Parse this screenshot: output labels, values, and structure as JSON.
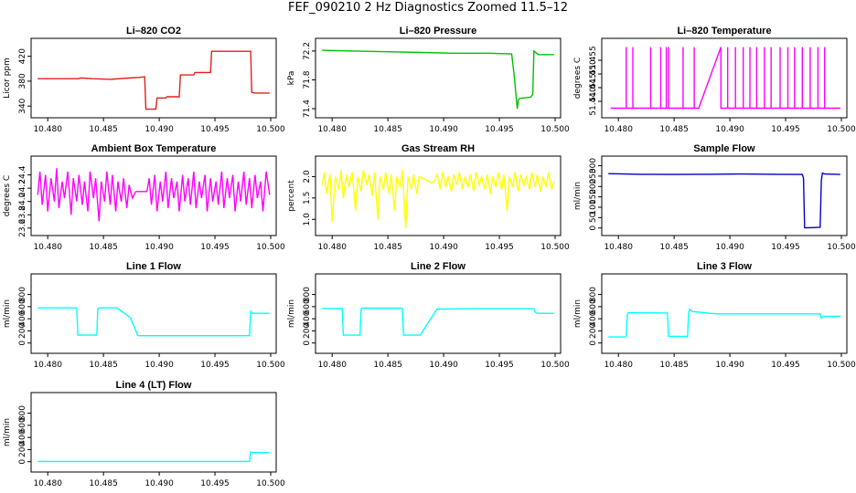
{
  "figure": {
    "title": "FEF_090210  2 Hz Diagnostics Zoomed 11.5–12"
  },
  "colors": {
    "red": "#e0201b",
    "green": "#00c000",
    "magenta": "#ff00ff",
    "yellow": "#ffff00",
    "blue": "#0000cc",
    "cyan": "#00ffff"
  },
  "chart_data": [
    {
      "type": "line",
      "title": "Li–820 CO2",
      "ylabel": "Licor ppm",
      "color": "red",
      "xlim": [
        10.479,
        10.5
      ],
      "ylim": [
        330,
        440
      ],
      "xticks": [
        "10.480",
        "10.485",
        "10.490",
        "10.495",
        "10.500"
      ],
      "yticks": [
        "340",
        "380",
        "420"
      ],
      "x": [
        10.4791,
        10.4828,
        10.4829,
        10.4832,
        10.484,
        10.4856,
        10.4872,
        10.4882,
        10.4887,
        10.4888,
        10.4897,
        10.4898,
        10.4906,
        10.4907,
        10.4918,
        10.4919,
        10.4931,
        10.4932,
        10.4946,
        10.4947,
        10.4982,
        10.4983,
        10.4986,
        10.4999
      ],
      "y": [
        384,
        384,
        385,
        385,
        384,
        383,
        385,
        386,
        387,
        335,
        335,
        353,
        353,
        355,
        355,
        390,
        390,
        394,
        394,
        428,
        428,
        362,
        361,
        361
      ]
    },
    {
      "type": "line",
      "title": "Li–820 Pressure",
      "ylabel": "kPa",
      "color": "green",
      "xlim": [
        10.479,
        10.5
      ],
      "ylim": [
        71.35,
        72.3
      ],
      "xticks": [
        "10.480",
        "10.485",
        "10.490",
        "10.495",
        "10.500"
      ],
      "yticks": [
        "71.4",
        "71.8",
        "72.2"
      ],
      "x": [
        10.4791,
        10.482,
        10.485,
        10.488,
        10.491,
        10.494,
        10.4961,
        10.4963,
        10.4966,
        10.4967,
        10.4968,
        10.4971,
        10.4973,
        10.4978,
        10.498,
        10.4981,
        10.4985,
        10.4999
      ],
      "y": [
        72.21,
        72.2,
        72.19,
        72.18,
        72.17,
        72.17,
        72.16,
        71.9,
        71.4,
        71.52,
        71.54,
        71.55,
        71.55,
        71.56,
        71.6,
        72.2,
        72.15,
        72.15
      ]
    },
    {
      "type": "line",
      "title": "Li–820 Temperature",
      "ylabel": "degrees C",
      "color": "magenta",
      "xlim": [
        10.479,
        10.5
      ],
      "ylim": [
        51.436,
        51.461
      ],
      "xticks": [
        "10.480",
        "10.485",
        "10.490",
        "10.495",
        "10.500"
      ],
      "yticks": [
        "51.440",
        "51.445",
        "51.450",
        "51.455"
      ],
      "x": [
        10.4793,
        10.4807,
        10.4807,
        10.4807,
        10.4813,
        10.4813,
        10.4813,
        10.4829,
        10.4829,
        10.4829,
        10.4838,
        10.4838,
        10.4838,
        10.4843,
        10.4843,
        10.4843,
        10.4845,
        10.4845,
        10.4845,
        10.4858,
        10.4858,
        10.4858,
        10.4868,
        10.4868,
        10.4868,
        10.4872,
        10.4892,
        10.4892,
        10.4898,
        10.4898,
        10.4898,
        10.4905,
        10.4905,
        10.4905,
        10.4912,
        10.4912,
        10.4912,
        10.4918,
        10.4918,
        10.4918,
        10.4924,
        10.4924,
        10.4924,
        10.4931,
        10.4931,
        10.4931,
        10.4937,
        10.4937,
        10.4937,
        10.4945,
        10.4945,
        10.4945,
        10.4952,
        10.4952,
        10.4952,
        10.4958,
        10.4958,
        10.4958,
        10.4965,
        10.4965,
        10.4965,
        10.4972,
        10.4972,
        10.4972,
        10.4979,
        10.4979,
        10.4979,
        10.4985,
        10.4985,
        10.4985,
        10.4999
      ],
      "y": [
        51.4375,
        51.4375,
        51.4598,
        51.4375,
        51.4375,
        51.4598,
        51.4375,
        51.4375,
        51.4598,
        51.4375,
        51.4375,
        51.4598,
        51.4375,
        51.4375,
        51.4598,
        51.4375,
        51.4375,
        51.4598,
        51.4375,
        51.4375,
        51.4598,
        51.4375,
        51.4375,
        51.4598,
        51.4375,
        51.4375,
        51.4598,
        51.4375,
        51.4375,
        51.4598,
        51.4375,
        51.4375,
        51.4598,
        51.4375,
        51.4375,
        51.4598,
        51.4375,
        51.4375,
        51.4598,
        51.4375,
        51.4375,
        51.4598,
        51.4375,
        51.4375,
        51.4598,
        51.4375,
        51.4375,
        51.4598,
        51.4375,
        51.4375,
        51.4598,
        51.4375,
        51.4375,
        51.4598,
        51.4375,
        51.4375,
        51.4598,
        51.4375,
        51.4375,
        51.4598,
        51.4375,
        51.4375,
        51.4598,
        51.4375,
        51.4375,
        51.4598,
        51.4375,
        51.4375,
        51.4598,
        51.4375,
        51.4375
      ]
    },
    {
      "type": "line",
      "title": "Ambient Box Temperature",
      "ylabel": "degrees C",
      "color": "magenta",
      "xlim": [
        10.479,
        10.5
      ],
      "ylim": [
        23.57,
        24.6
      ],
      "xticks": [
        "10.480",
        "10.485",
        "10.490",
        "10.495",
        "10.500"
      ],
      "yticks": [
        "23.6",
        "23.8",
        "24.0",
        "24.2",
        "24.4"
      ],
      "x": [
        10.4791,
        10.4793,
        10.4795,
        10.4798,
        10.48,
        10.4803,
        10.4806,
        10.4808,
        10.481,
        10.4813,
        10.4815,
        10.4818,
        10.4821,
        10.4823,
        10.4826,
        10.4828,
        10.4831,
        10.4833,
        10.4836,
        10.4838,
        10.4841,
        10.4843,
        10.4846,
        10.4848,
        10.4851,
        10.4853,
        10.4856,
        10.4858,
        10.4861,
        10.4863,
        10.4866,
        10.4868,
        10.4871,
        10.4873,
        10.4876,
        10.4879,
        10.4882,
        10.4889,
        10.4891,
        10.4893,
        10.4896,
        10.4898,
        10.4901,
        10.4903,
        10.4906,
        10.4908,
        10.4911,
        10.4913,
        10.4916,
        10.4918,
        10.4921,
        10.4923,
        10.4926,
        10.4928,
        10.4931,
        10.4933,
        10.4936,
        10.4938,
        10.4941,
        10.4943,
        10.4946,
        10.4948,
        10.4951,
        10.4953,
        10.4956,
        10.4958,
        10.4961,
        10.4963,
        10.4966,
        10.4968,
        10.4971,
        10.4973,
        10.4976,
        10.4978,
        10.4981,
        10.4983,
        10.4986,
        10.4988,
        10.4991,
        10.4993,
        10.4996,
        10.4999
      ],
      "y": [
        24.1,
        24.45,
        23.95,
        24.4,
        23.85,
        24.35,
        24.0,
        24.5,
        23.9,
        24.3,
        24.05,
        24.45,
        23.8,
        24.35,
        24.0,
        24.4,
        23.95,
        24.3,
        23.85,
        24.45,
        24.05,
        24.35,
        23.7,
        24.3,
        24.0,
        24.45,
        23.95,
        24.4,
        23.85,
        24.3,
        24.0,
        24.35,
        23.9,
        24.25,
        24.05,
        24.15,
        24.15,
        24.15,
        24.35,
        23.95,
        24.4,
        23.85,
        24.3,
        24.0,
        24.45,
        23.9,
        24.35,
        24.05,
        24.3,
        23.85,
        24.4,
        24.0,
        24.35,
        23.95,
        24.45,
        23.9,
        24.3,
        24.05,
        24.4,
        23.85,
        24.35,
        24.0,
        24.3,
        23.95,
        24.45,
        23.9,
        24.35,
        24.05,
        24.4,
        23.85,
        24.3,
        24.0,
        24.45,
        23.95,
        24.35,
        23.9,
        24.4,
        24.05,
        24.3,
        23.85,
        24.45,
        24.1
      ]
    },
    {
      "type": "line",
      "title": "Gas Stream RH",
      "ylabel": "percent",
      "color": "yellow",
      "xlim": [
        10.479,
        10.5
      ],
      "ylim": [
        0.75,
        2.35
      ],
      "xticks": [
        "10.480",
        "10.485",
        "10.490",
        "10.495",
        "10.500"
      ],
      "yticks": [
        "1.0",
        "1.5",
        "2.0"
      ],
      "x": [
        10.4791,
        10.4793,
        10.4795,
        10.4798,
        10.48,
        10.4803,
        10.4806,
        10.4808,
        10.481,
        10.4813,
        10.4815,
        10.4818,
        10.4821,
        10.4823,
        10.4826,
        10.4828,
        10.4831,
        10.4833,
        10.4836,
        10.4838,
        10.4841,
        10.4843,
        10.4846,
        10.4848,
        10.4851,
        10.4853,
        10.4856,
        10.4858,
        10.4861,
        10.4863,
        10.4866,
        10.4868,
        10.4871,
        10.4873,
        10.4876,
        10.4878,
        10.4882,
        10.4886,
        10.4889,
        10.4892,
        10.4894,
        10.4897,
        10.4899,
        10.4902,
        10.4904,
        10.4907,
        10.4909,
        10.4912,
        10.4914,
        10.4917,
        10.4919,
        10.4922,
        10.4924,
        10.4927,
        10.4929,
        10.4932,
        10.4934,
        10.4937,
        10.4939,
        10.4942,
        10.4944,
        10.4947,
        10.4949,
        10.4952,
        10.4954,
        10.4957,
        10.4959,
        10.4962,
        10.4964,
        10.4967,
        10.4969,
        10.4972,
        10.4974,
        10.4977,
        10.4979,
        10.4982,
        10.4984,
        10.4987,
        10.4989,
        10.4992,
        10.4994,
        10.4997,
        10.4999
      ],
      "y": [
        1.8,
        2.1,
        1.6,
        2.05,
        0.95,
        2.0,
        1.7,
        2.15,
        1.5,
        2.05,
        1.75,
        2.1,
        1.2,
        2.0,
        1.65,
        2.15,
        1.8,
        2.05,
        1.55,
        2.1,
        1.0,
        2.0,
        1.7,
        2.1,
        1.6,
        2.05,
        1.2,
        2.0,
        1.75,
        2.15,
        0.8,
        2.0,
        1.7,
        2.05,
        1.6,
        2.0,
        1.95,
        1.9,
        1.85,
        1.9,
        2.05,
        1.7,
        2.1,
        1.75,
        2.0,
        1.65,
        2.05,
        1.8,
        2.1,
        1.7,
        2.0,
        1.75,
        2.05,
        1.65,
        2.1,
        1.8,
        2.0,
        1.7,
        2.05,
        1.6,
        2.0,
        1.75,
        2.1,
        1.7,
        2.05,
        1.2,
        2.0,
        1.75,
        2.1,
        1.65,
        2.05,
        1.8,
        2.0,
        1.7,
        2.1,
        1.75,
        2.05,
        1.65,
        2.0,
        1.75,
        2.1,
        1.7,
        1.9
      ]
    },
    {
      "type": "line",
      "title": "Sample Flow",
      "ylabel": "ml/min",
      "color": "blue",
      "xlim": [
        10.479,
        10.5
      ],
      "ylim": [
        -10,
        320
      ],
      "xticks": [
        "10.480",
        "10.485",
        "10.490",
        "10.495",
        "10.500"
      ],
      "yticks": [
        "0",
        "50",
        "100",
        "150",
        "200",
        "250",
        "300"
      ],
      "x": [
        10.4791,
        10.482,
        10.485,
        10.488,
        10.491,
        10.494,
        10.4965,
        10.4966,
        10.4967,
        10.4968,
        10.4975,
        10.4981,
        10.4982,
        10.4983,
        10.4985,
        10.4999
      ],
      "y": [
        262,
        259,
        258,
        259,
        260,
        259,
        258,
        240,
        2,
        1,
        2,
        3,
        230,
        265,
        260,
        258
      ]
    },
    {
      "type": "line",
      "title": "Line 1 Flow",
      "ylabel": "ml/min",
      "color": "cyan",
      "xlim": [
        10.479,
        10.5
      ],
      "ylim": [
        -80,
        1050
      ],
      "xticks": [
        "10.480",
        "10.485",
        "10.490",
        "10.495",
        "10.500"
      ],
      "yticks": [
        "0",
        "200",
        "400",
        "600",
        "800"
      ],
      "x": [
        10.4791,
        10.4825,
        10.4826,
        10.4827,
        10.4844,
        10.4845,
        10.4846,
        10.4862,
        10.4874,
        10.4881,
        10.4924,
        10.4966,
        10.4981,
        10.4982,
        10.4984,
        10.4999
      ],
      "y": [
        580,
        580,
        575,
        130,
        130,
        570,
        580,
        580,
        420,
        120,
        120,
        120,
        120,
        520,
        490,
        490
      ]
    },
    {
      "type": "line",
      "title": "Line 2 Flow",
      "ylabel": "ml/min",
      "color": "cyan",
      "xlim": [
        10.479,
        10.5
      ],
      "ylim": [
        -80,
        1050
      ],
      "xticks": [
        "10.480",
        "10.485",
        "10.490",
        "10.495",
        "10.500"
      ],
      "yticks": [
        "0",
        "200",
        "400",
        "600",
        "800"
      ],
      "x": [
        10.4791,
        10.4808,
        10.4809,
        10.481,
        10.4825,
        10.4826,
        10.4827,
        10.4862,
        10.4863,
        10.4864,
        10.4879,
        10.4894,
        10.4933,
        10.4968,
        10.4981,
        10.4982,
        10.4984,
        10.4999
      ],
      "y": [
        570,
        570,
        565,
        130,
        130,
        565,
        575,
        575,
        565,
        130,
        130,
        560,
        565,
        565,
        565,
        510,
        490,
        490
      ]
    },
    {
      "type": "line",
      "title": "Line 3 Flow",
      "ylabel": "ml/min",
      "color": "cyan",
      "xlim": [
        10.479,
        10.5
      ],
      "ylim": [
        -80,
        1050
      ],
      "xticks": [
        "10.480",
        "10.485",
        "10.490",
        "10.495",
        "10.500"
      ],
      "yticks": [
        "0",
        "200",
        "400",
        "600",
        "800"
      ],
      "x": [
        10.4791,
        10.4806,
        10.4807,
        10.4808,
        10.4809,
        10.4843,
        10.4844,
        10.4845,
        10.4862,
        10.4863,
        10.4864,
        10.4866,
        10.4871,
        10.4877,
        10.4882,
        10.489,
        10.4933,
        10.4981,
        10.4982,
        10.4984,
        10.4999
      ],
      "y": [
        100,
        100,
        110,
        470,
        500,
        495,
        490,
        110,
        110,
        500,
        560,
        520,
        510,
        500,
        490,
        480,
        480,
        480,
        410,
        440,
        440
      ]
    },
    {
      "type": "line",
      "title": "Line 4 (LT) Flow",
      "ylabel": "ml/min",
      "color": "cyan",
      "xlim": [
        10.479,
        10.5
      ],
      "ylim": [
        -80,
        1050
      ],
      "xticks": [
        "10.480",
        "10.485",
        "10.490",
        "10.495",
        "10.500"
      ],
      "yticks": [
        "0",
        "200",
        "400",
        "600",
        "800"
      ],
      "x": [
        10.4791,
        10.485,
        10.491,
        10.4967,
        10.4981,
        10.4982,
        10.4984,
        10.4999
      ],
      "y": [
        5,
        5,
        5,
        5,
        5,
        160,
        150,
        150
      ]
    }
  ]
}
